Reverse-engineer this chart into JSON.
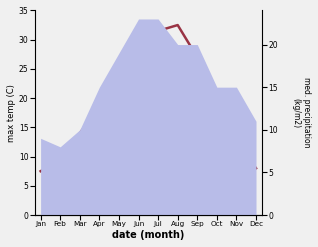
{
  "months": [
    "Jan",
    "Feb",
    "Mar",
    "Apr",
    "May",
    "Jun",
    "Jul",
    "Aug",
    "Sep",
    "Oct",
    "Nov",
    "Dec"
  ],
  "temp_max": [
    7.5,
    9.5,
    14.0,
    18.5,
    22.5,
    26.0,
    31.5,
    32.5,
    27.0,
    20.0,
    13.0,
    8.0
  ],
  "precipitation": [
    9,
    8,
    10,
    15,
    19,
    23,
    23,
    20,
    20,
    15,
    15,
    11
  ],
  "temp_ylim": [
    0,
    35
  ],
  "precip_ylim": [
    0,
    24
  ],
  "temp_color": "#993344",
  "precip_fill_color": "#b8bce8",
  "precip_fill_alpha": 1.0,
  "xlabel": "date (month)",
  "ylabel_left": "max temp (C)",
  "ylabel_right": "med. precipitation\n(kg/m2)",
  "temp_yticks": [
    0,
    5,
    10,
    15,
    20,
    25,
    30,
    35
  ],
  "precip_yticks": [
    0,
    5,
    10,
    15,
    20
  ],
  "bg_color": "#f0f0f0"
}
